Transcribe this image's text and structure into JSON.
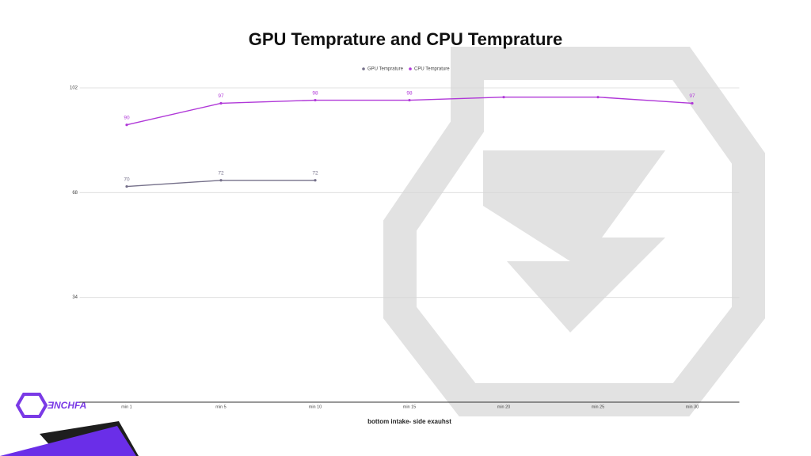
{
  "chart_data": {
    "type": "line",
    "title": "GPU Temprature and CPU Temprature",
    "x_label": "bottom intake- side exauhst",
    "categories": [
      "min 1",
      "min 5",
      "min 10",
      "min 15",
      "min 20",
      "min 25",
      "min 30"
    ],
    "series": [
      {
        "name": "GPU Temprature",
        "color": "#75708a",
        "values": [
          70,
          72,
          72,
          null,
          null,
          null,
          null
        ],
        "value_labels": [
          70,
          72,
          72,
          null,
          null,
          null,
          null
        ]
      },
      {
        "name": "CPU Temprature",
        "color": "#b038d8",
        "values": [
          90,
          97,
          98,
          98,
          99,
          99,
          97
        ],
        "value_labels": [
          90,
          97,
          98,
          98,
          null,
          null,
          97
        ]
      }
    ],
    "ylim": [
      0,
      102
    ],
    "yticks": [
      34,
      68,
      102
    ],
    "grid": true,
    "legend": "top"
  },
  "logo": {
    "text": "ƎNCHFA"
  }
}
